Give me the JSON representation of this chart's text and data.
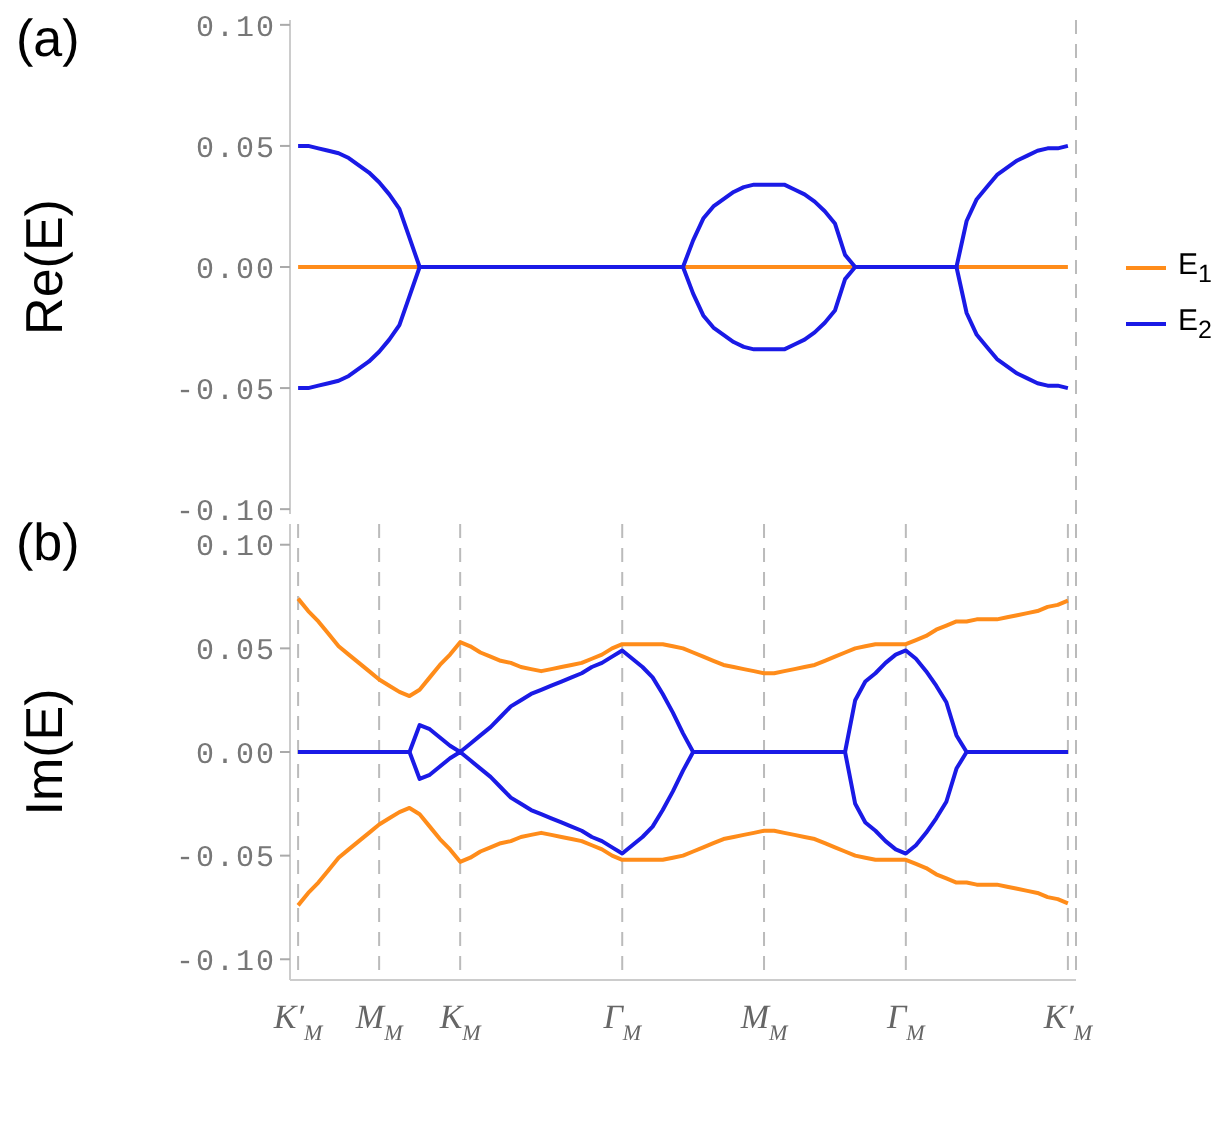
{
  "chart_data": [
    {
      "type": "line",
      "title": "(a)",
      "ylabel": "Re(E)",
      "ylim": [
        -0.102,
        0.102
      ],
      "categories": [
        null,
        null,
        null,
        null,
        null,
        null,
        null,
        null,
        null,
        null,
        null,
        null,
        null,
        null,
        null,
        null,
        null,
        null,
        null,
        null,
        null,
        null,
        null,
        null,
        null,
        null,
        null,
        null,
        null,
        null,
        null,
        null,
        null,
        null,
        null,
        null,
        null,
        null,
        null,
        null,
        null,
        null,
        null,
        null,
        null,
        null,
        null,
        null,
        null,
        null,
        null,
        null,
        null,
        null,
        null,
        null,
        null,
        null,
        null,
        null,
        null,
        null,
        null,
        null,
        null,
        null,
        null,
        null,
        null,
        null,
        null,
        null,
        null,
        null,
        null,
        null,
        null
      ],
      "yticks": [
        {
          "value": 0.1,
          "label": "0.10"
        },
        {
          "value": 0.05,
          "label": "0.05"
        },
        {
          "value": 0,
          "label": "0.00"
        },
        {
          "value": -0.05,
          "label": "-0.05"
        },
        {
          "value": -0.1,
          "label": "-0.10"
        }
      ],
      "tick_labels": "y",
      "grid": "x",
      "legend": "right",
      "series": [
        {
          "name": "E$_{1}$",
          "color": "#ff8c1a",
          "values": [
            0,
            0,
            0,
            0,
            0,
            0,
            0,
            0,
            0,
            0,
            0,
            0,
            0,
            0,
            0,
            0,
            0,
            0,
            0,
            0,
            0,
            0,
            0,
            0,
            0,
            0,
            0,
            0,
            0,
            0,
            0,
            0,
            0,
            0,
            0,
            0,
            0,
            0,
            0,
            0,
            0,
            0,
            0,
            0,
            0,
            0,
            0,
            0,
            0,
            0,
            0,
            0,
            0,
            0,
            0,
            0,
            0,
            0,
            0,
            0,
            0,
            0,
            0,
            0,
            0,
            0,
            0,
            0,
            0,
            0,
            0,
            0,
            0,
            0,
            0,
            0,
            0
          ]
        },
        {
          "name": "E$_{2}$",
          "color": "#1a1ae6",
          "values": [
            0.05,
            0.05,
            0.049,
            0.048,
            0.047,
            0.045,
            0.042,
            0.039,
            0.035,
            0.03,
            0.024,
            0.012,
            0,
            0,
            0,
            0,
            0,
            0,
            0,
            0,
            0,
            0,
            0,
            0,
            0,
            0,
            0,
            0,
            0,
            0,
            0,
            0,
            0,
            0,
            0,
            0,
            0,
            0,
            0,
            0.011,
            0.02,
            0.025,
            0.028,
            0.031,
            0.033,
            0.034,
            0.034,
            0.034,
            0.034,
            0.032,
            0.03,
            0.027,
            0.023,
            0.018,
            0.005,
            0,
            0,
            0,
            0,
            0,
            0,
            0,
            0,
            0,
            0,
            0,
            0.019,
            0.028,
            0.033,
            0.038,
            0.041,
            0.044,
            0.046,
            0.048,
            0.049,
            0.049,
            0.05
          ]
        },
        {
          "color": "#1a1ae6",
          "values": [
            -0.05,
            -0.05,
            -0.049,
            -0.048,
            -0.047,
            -0.045,
            -0.042,
            -0.039,
            -0.035,
            -0.03,
            -0.024,
            -0.012,
            0,
            0,
            0,
            0,
            0,
            0,
            0,
            0,
            0,
            0,
            0,
            0,
            0,
            0,
            0,
            0,
            0,
            0,
            0,
            0,
            0,
            0,
            0,
            0,
            0,
            0,
            0,
            -0.011,
            -0.02,
            -0.025,
            -0.028,
            -0.031,
            -0.033,
            -0.034,
            -0.034,
            -0.034,
            -0.034,
            -0.032,
            -0.03,
            -0.027,
            -0.023,
            -0.018,
            -0.005,
            0,
            0,
            0,
            0,
            0,
            0,
            0,
            0,
            0,
            0,
            0,
            -0.019,
            -0.028,
            -0.033,
            -0.038,
            -0.041,
            -0.044,
            -0.046,
            -0.048,
            -0.049,
            -0.049,
            -0.05
          ]
        }
      ]
    },
    {
      "type": "line",
      "title": "(b)",
      "ylabel": "Im(E)",
      "ylim": [
        -0.11,
        0.11
      ],
      "categories": [
        "K′$_{M}$",
        null,
        null,
        null,
        null,
        null,
        null,
        null,
        "M$_{M}$",
        null,
        null,
        null,
        null,
        null,
        null,
        null,
        "K$_{M}$",
        null,
        null,
        null,
        null,
        null,
        null,
        null,
        null,
        null,
        null,
        null,
        null,
        null,
        null,
        null,
        "Γ$_{M}$",
        null,
        null,
        null,
        null,
        null,
        null,
        null,
        null,
        null,
        null,
        null,
        null,
        null,
        "M$_{M}$",
        null,
        null,
        null,
        null,
        null,
        null,
        null,
        null,
        null,
        null,
        null,
        null,
        null,
        "Γ$_{M}$",
        null,
        null,
        null,
        null,
        null,
        null,
        null,
        null,
        null,
        null,
        null,
        null,
        null,
        null,
        null,
        "K′$_{M}$"
      ],
      "yticks": [
        {
          "value": 0.1,
          "label": "0.10"
        },
        {
          "value": 0.05,
          "label": "0.05"
        },
        {
          "value": 0,
          "label": "0.00"
        },
        {
          "value": -0.05,
          "label": "-0.05"
        },
        {
          "value": -0.1,
          "label": "-0.10"
        }
      ],
      "grid": "x",
      "series": [
        {
          "color": "#ff8c1a",
          "values": [
            0.074,
            0.068,
            0.063,
            0.057,
            0.051,
            0.047,
            0.043,
            0.039,
            0.035,
            0.032,
            0.029,
            0.027,
            0.03,
            0.036,
            0.042,
            0.047,
            0.053,
            0.051,
            0.048,
            0.046,
            0.044,
            0.043,
            0.041,
            0.04,
            0.039,
            0.04,
            0.041,
            0.042,
            0.043,
            0.045,
            0.047,
            0.05,
            0.052,
            0.052,
            0.052,
            0.052,
            0.052,
            0.051,
            0.05,
            0.048,
            0.046,
            0.044,
            0.042,
            0.041,
            0.04,
            0.039,
            0.038,
            0.038,
            0.039,
            0.04,
            0.041,
            0.042,
            0.044,
            0.046,
            0.048,
            0.05,
            0.051,
            0.052,
            0.052,
            0.052,
            0.052,
            0.054,
            0.056,
            0.059,
            0.061,
            0.063,
            0.063,
            0.064,
            0.064,
            0.064,
            0.065,
            0.066,
            0.067,
            0.068,
            0.07,
            0.071,
            0.073
          ]
        },
        {
          "color": "#ff8c1a",
          "values": [
            -0.074,
            -0.068,
            -0.063,
            -0.057,
            -0.051,
            -0.047,
            -0.043,
            -0.039,
            -0.035,
            -0.032,
            -0.029,
            -0.027,
            -0.03,
            -0.036,
            -0.042,
            -0.047,
            -0.053,
            -0.051,
            -0.048,
            -0.046,
            -0.044,
            -0.043,
            -0.041,
            -0.04,
            -0.039,
            -0.04,
            -0.041,
            -0.042,
            -0.043,
            -0.045,
            -0.047,
            -0.05,
            -0.052,
            -0.052,
            -0.052,
            -0.052,
            -0.052,
            -0.051,
            -0.05,
            -0.048,
            -0.046,
            -0.044,
            -0.042,
            -0.041,
            -0.04,
            -0.039,
            -0.038,
            -0.038,
            -0.039,
            -0.04,
            -0.041,
            -0.042,
            -0.044,
            -0.046,
            -0.048,
            -0.05,
            -0.051,
            -0.052,
            -0.052,
            -0.052,
            -0.052,
            -0.054,
            -0.056,
            -0.059,
            -0.061,
            -0.063,
            -0.063,
            -0.064,
            -0.064,
            -0.064,
            -0.065,
            -0.066,
            -0.067,
            -0.068,
            -0.07,
            -0.071,
            -0.073
          ]
        },
        {
          "color": "#1a1ae6",
          "values": [
            0,
            0,
            0,
            0,
            0,
            0,
            0,
            0,
            0,
            0,
            0,
            0,
            0.013,
            0.011,
            0.007,
            0.003,
            0,
            0.004,
            0.008,
            0.012,
            0.017,
            0.022,
            0.025,
            0.028,
            0.03,
            0.032,
            0.034,
            0.036,
            0.038,
            0.041,
            0.043,
            0.046,
            0.049,
            0.045,
            0.041,
            0.036,
            0.028,
            0.019,
            0.009,
            0,
            0,
            0,
            0,
            0,
            0,
            0,
            0,
            0,
            0,
            0,
            0,
            0,
            0,
            0,
            0,
            0.025,
            0.034,
            0.038,
            0.043,
            0.047,
            0.049,
            0.045,
            0.039,
            0.032,
            0.024,
            0.008,
            0,
            0,
            0,
            0,
            0,
            0,
            0,
            0,
            0,
            0,
            0
          ]
        },
        {
          "color": "#1a1ae6",
          "values": [
            0,
            0,
            0,
            0,
            0,
            0,
            0,
            0,
            0,
            0,
            0,
            0,
            -0.013,
            -0.011,
            -0.007,
            -0.003,
            0,
            -0.004,
            -0.008,
            -0.012,
            -0.017,
            -0.022,
            -0.025,
            -0.028,
            -0.03,
            -0.032,
            -0.034,
            -0.036,
            -0.038,
            -0.041,
            -0.043,
            -0.046,
            -0.049,
            -0.045,
            -0.041,
            -0.036,
            -0.028,
            -0.019,
            -0.009,
            0,
            0,
            0,
            0,
            0,
            0,
            0,
            0,
            0,
            0,
            0,
            0,
            0,
            0,
            0,
            0,
            -0.025,
            -0.034,
            -0.038,
            -0.043,
            -0.047,
            -0.049,
            -0.045,
            -0.039,
            -0.032,
            -0.024,
            -0.008,
            0,
            0,
            0,
            0,
            0,
            0,
            0,
            0,
            0,
            0,
            0
          ]
        }
      ]
    }
  ]
}
